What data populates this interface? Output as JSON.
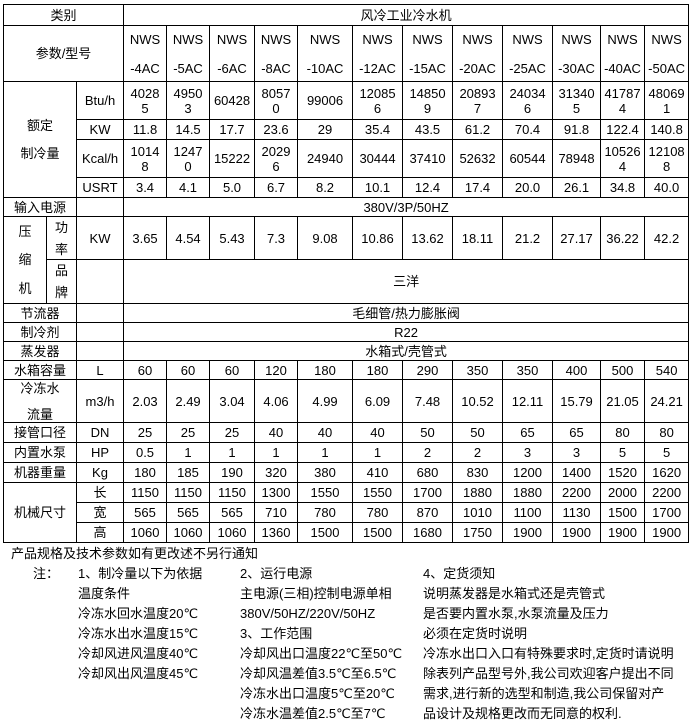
{
  "table": {
    "category_label": "类别",
    "category_value": "风冷工业冷水机",
    "param_label": "参数/型号",
    "model_prefix": "NWS",
    "model_suffixes": [
      "-4AC",
      "-5AC",
      "-6AC",
      "-8AC",
      "-10AC",
      "-12AC",
      "-15AC",
      "-20AC",
      "-25AC",
      "-30AC",
      "-40AC",
      "-50AC"
    ],
    "capacity": {
      "label_lines": [
        "额定",
        "制冷量"
      ],
      "rows": [
        {
          "unit": "Btu/h",
          "values": [
            "40285",
            "49503",
            "60428",
            "80570",
            "99006",
            "120856",
            "148509",
            "208937",
            "240346",
            "313405",
            "417874",
            "480691"
          ]
        },
        {
          "unit": "KW",
          "values": [
            "11.8",
            "14.5",
            "17.7",
            "23.6",
            "29",
            "35.4",
            "43.5",
            "61.2",
            "70.4",
            "91.8",
            "122.4",
            "140.8"
          ]
        },
        {
          "unit": "Kcal/h",
          "values": [
            "10148",
            "12470",
            "15222",
            "20296",
            "24940",
            "30444",
            "37410",
            "52632",
            "60544",
            "78948",
            "105264",
            "121088"
          ]
        },
        {
          "unit": "USRT",
          "values": [
            "3.4",
            "4.1",
            "5.0",
            "6.7",
            "8.2",
            "10.1",
            "12.4",
            "17.4",
            "20.0",
            "26.1",
            "34.8",
            "40.0"
          ]
        }
      ]
    },
    "power_supply": {
      "label": "输入电源",
      "value": "380V/3P/50HZ"
    },
    "compressor": {
      "label": "压缩机",
      "power_label": "功率",
      "power_unit": "KW",
      "power_values": [
        "3.65",
        "4.54",
        "5.43",
        "7.3",
        "9.08",
        "10.86",
        "13.62",
        "18.11",
        "21.2",
        "27.17",
        "36.22",
        "42.2"
      ],
      "brand_label": "品牌",
      "brand_value": "三洋"
    },
    "throttle": {
      "label": "节流器",
      "value": "毛细管/热力膨胀阀"
    },
    "refrigerant": {
      "label": "制冷剂",
      "value": "R22"
    },
    "evaporator": {
      "label": "蒸发器",
      "value": "水箱式/壳管式"
    },
    "specs": [
      {
        "label": "水箱容量",
        "unit": "L",
        "values": [
          "60",
          "60",
          "60",
          "120",
          "180",
          "180",
          "290",
          "350",
          "350",
          "400",
          "500",
          "540"
        ]
      },
      {
        "label": "冷冻水流量",
        "label_lines": [
          "冷冻水",
          "流量"
        ],
        "unit": "m3/h",
        "values": [
          "2.03",
          "2.49",
          "3.04",
          "4.06",
          "4.99",
          "6.09",
          "7.48",
          "10.52",
          "12.11",
          "15.79",
          "21.05",
          "24.21"
        ]
      },
      {
        "label": "接管口径",
        "unit": "DN",
        "values": [
          "25",
          "25",
          "25",
          "40",
          "40",
          "40",
          "50",
          "50",
          "65",
          "65",
          "80",
          "80"
        ]
      },
      {
        "label": "内置水泵",
        "unit": "HP",
        "values": [
          "0.5",
          "1",
          "1",
          "1",
          "1",
          "1",
          "2",
          "2",
          "3",
          "3",
          "5",
          "5"
        ]
      },
      {
        "label": "机器重量",
        "unit": "Kg",
        "values": [
          "180",
          "185",
          "190",
          "320",
          "380",
          "410",
          "680",
          "830",
          "1200",
          "1400",
          "1520",
          "1620"
        ]
      }
    ],
    "dimensions": {
      "label": "机械尺寸",
      "rows": [
        {
          "unit": "长",
          "values": [
            "1150",
            "1150",
            "1150",
            "1300",
            "1550",
            "1550",
            "1700",
            "1880",
            "1880",
            "2200",
            "2000",
            "2200"
          ]
        },
        {
          "unit": "宽",
          "values": [
            "565",
            "565",
            "565",
            "710",
            "780",
            "780",
            "870",
            "1010",
            "1100",
            "1130",
            "1500",
            "1700"
          ]
        },
        {
          "unit": "高",
          "values": [
            "1060",
            "1060",
            "1060",
            "1360",
            "1500",
            "1500",
            "1680",
            "1750",
            "1900",
            "1900",
            "1900",
            "1900"
          ]
        }
      ]
    }
  },
  "footer": {
    "disclaimer": "产品规格及技术参数如有更改述不另行通知",
    "note_label": "注：",
    "columns": [
      {
        "lines": [
          "1、制冷量以下为依据",
          "温度条件",
          "冷冻水回水温度20℃",
          "冷冻水出水温度15℃",
          "冷却风进风温度40℃",
          "冷却风出风温度45℃"
        ]
      },
      {
        "lines": [
          "2、运行电源",
          "主电源(三相)控制电源单相",
          "380V/50HZ/220V/50HZ",
          "3、工作范围",
          "冷却风出口温度22℃至50℃",
          "冷却风温差值3.5℃至6.5℃",
          "冷冻水出口温度5℃至20℃",
          "冷冻水温差值2.5℃至7℃"
        ]
      },
      {
        "lines": [
          "4、定货须知",
          "说明蒸发器是水箱式还是壳管式",
          "是否要内置水泵,水泵流量及压力",
          "必须在定货时说明",
          "冷冻水出口入口有特殊要求时,定货时请说明",
          "除表列产品型号外,我公司欢迎客户提出不同",
          "需求,进行新的选型和制造,我公司保留对产",
          "品设计及规格更改而无同意的权利."
        ]
      }
    ]
  }
}
